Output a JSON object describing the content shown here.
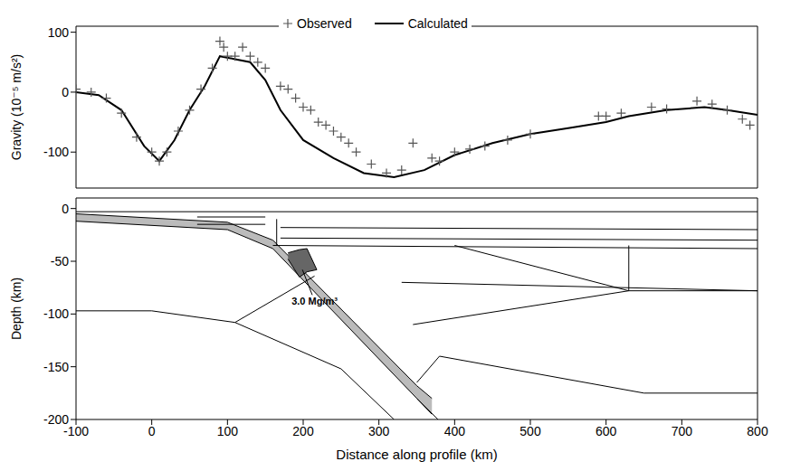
{
  "chart_data": [
    {
      "type": "line",
      "ylabel": "Gravity (10⁻⁵ m/s²)",
      "xlim": [
        -100,
        800
      ],
      "xticks": [
        -100,
        0,
        100,
        200,
        300,
        400,
        500,
        600,
        700,
        800
      ],
      "ylim": [
        -160,
        110
      ],
      "yticks": [
        -100,
        0,
        100
      ],
      "tick_labels": "y",
      "grid": false,
      "legend": "top",
      "series": [
        {
          "name": "Observed",
          "type": "scatter",
          "marker": "+",
          "color": "#555555",
          "x": [
            -100,
            -80,
            -60,
            -40,
            -20,
            0,
            10,
            20,
            35,
            50,
            65,
            80,
            90,
            95,
            100,
            110,
            120,
            130,
            140,
            150,
            170,
            180,
            190,
            200,
            210,
            220,
            230,
            240,
            250,
            260,
            270,
            290,
            310,
            330,
            345,
            370,
            380,
            400,
            420,
            440,
            470,
            500,
            590,
            600,
            620,
            660,
            680,
            720,
            740,
            760,
            780,
            790
          ],
          "values": [
            5,
            0,
            -10,
            -35,
            -75,
            -100,
            -115,
            -100,
            -65,
            -30,
            5,
            40,
            85,
            75,
            60,
            60,
            75,
            60,
            50,
            40,
            10,
            5,
            -10,
            -25,
            -30,
            -50,
            -55,
            -65,
            -75,
            -85,
            -100,
            -120,
            -135,
            -130,
            -85,
            -110,
            -115,
            -100,
            -95,
            -90,
            -80,
            -70,
            -40,
            -40,
            -35,
            -25,
            -28,
            -15,
            -20,
            -30,
            -45,
            -55
          ]
        },
        {
          "name": "Calculated",
          "type": "line",
          "line_style": "solid",
          "color": "#000000",
          "x": [
            -100,
            -70,
            -40,
            -10,
            10,
            30,
            50,
            70,
            90,
            110,
            130,
            150,
            170,
            200,
            240,
            280,
            320,
            360,
            400,
            450,
            500,
            550,
            600,
            630,
            680,
            730,
            760,
            800
          ],
          "values": [
            0,
            -5,
            -30,
            -90,
            -115,
            -80,
            -30,
            10,
            60,
            55,
            50,
            20,
            -30,
            -80,
            -110,
            -135,
            -142,
            -130,
            -105,
            -85,
            -70,
            -60,
            -50,
            -40,
            -30,
            -25,
            -30,
            -38
          ]
        }
      ]
    },
    {
      "type": "cross_section",
      "xlabel": "Distance along profile (km)",
      "ylabel": "Depth (km)",
      "xlim": [
        -100,
        800
      ],
      "xticks": [
        -100,
        0,
        100,
        200,
        300,
        400,
        500,
        600,
        700,
        800
      ],
      "ylim": [
        -200,
        10
      ],
      "yticks": [
        -200,
        -150,
        -100,
        -50,
        0
      ],
      "grid": false,
      "annotation": "3.0 Mg/m³",
      "fills": [
        {
          "x": [
            -100,
            100,
            160,
            350,
            370
          ],
          "low": [
            -12,
            -20,
            -38,
            -180,
            -195
          ],
          "high": [
            -5,
            -13,
            -30,
            -168,
            -180
          ],
          "color": "#bbbbbb"
        },
        {
          "x": [
            180,
            195,
            205,
            218
          ],
          "low": [
            -48,
            -65,
            -60,
            -58
          ],
          "high": [
            -42,
            -39,
            -38,
            -58
          ],
          "color": "#666666"
        }
      ],
      "boundaries": [
        {
          "x": [
            -100,
            800
          ],
          "y": [
            -3,
            -3
          ]
        },
        {
          "x": [
            60,
            150
          ],
          "y": [
            -8,
            -8
          ]
        },
        {
          "x": [
            60,
            150
          ],
          "y": [
            -15,
            -15
          ]
        },
        {
          "x": [
            165,
            165
          ],
          "y": [
            -10,
            -35
          ]
        },
        {
          "x": [
            170,
            800
          ],
          "y": [
            -18,
            -20
          ]
        },
        {
          "x": [
            170,
            800
          ],
          "y": [
            -28,
            -30
          ]
        },
        {
          "x": [
            160,
            800
          ],
          "y": [
            -35,
            -38
          ]
        },
        {
          "x": [
            -100,
            0,
            110,
            250,
            320
          ],
          "y": [
            -97,
            -97,
            -108,
            -152,
            -200
          ]
        },
        {
          "x": [
            110,
            215
          ],
          "y": [
            -108,
            -64
          ]
        },
        {
          "x": [
            330,
            800
          ],
          "y": [
            -70,
            -78
          ]
        },
        {
          "x": [
            400,
            630,
            800
          ],
          "y": [
            -35,
            -78,
            -78
          ]
        },
        {
          "x": [
            630,
            630
          ],
          "y": [
            -35,
            -78
          ]
        },
        {
          "x": [
            345,
            630
          ],
          "y": [
            -110,
            -78
          ]
        },
        {
          "x": [
            350,
            380,
            650,
            800
          ],
          "y": [
            -165,
            -140,
            -175,
            -175
          ]
        },
        {
          "x": [
            350,
            378
          ],
          "y": [
            -180,
            -200
          ]
        }
      ]
    }
  ]
}
